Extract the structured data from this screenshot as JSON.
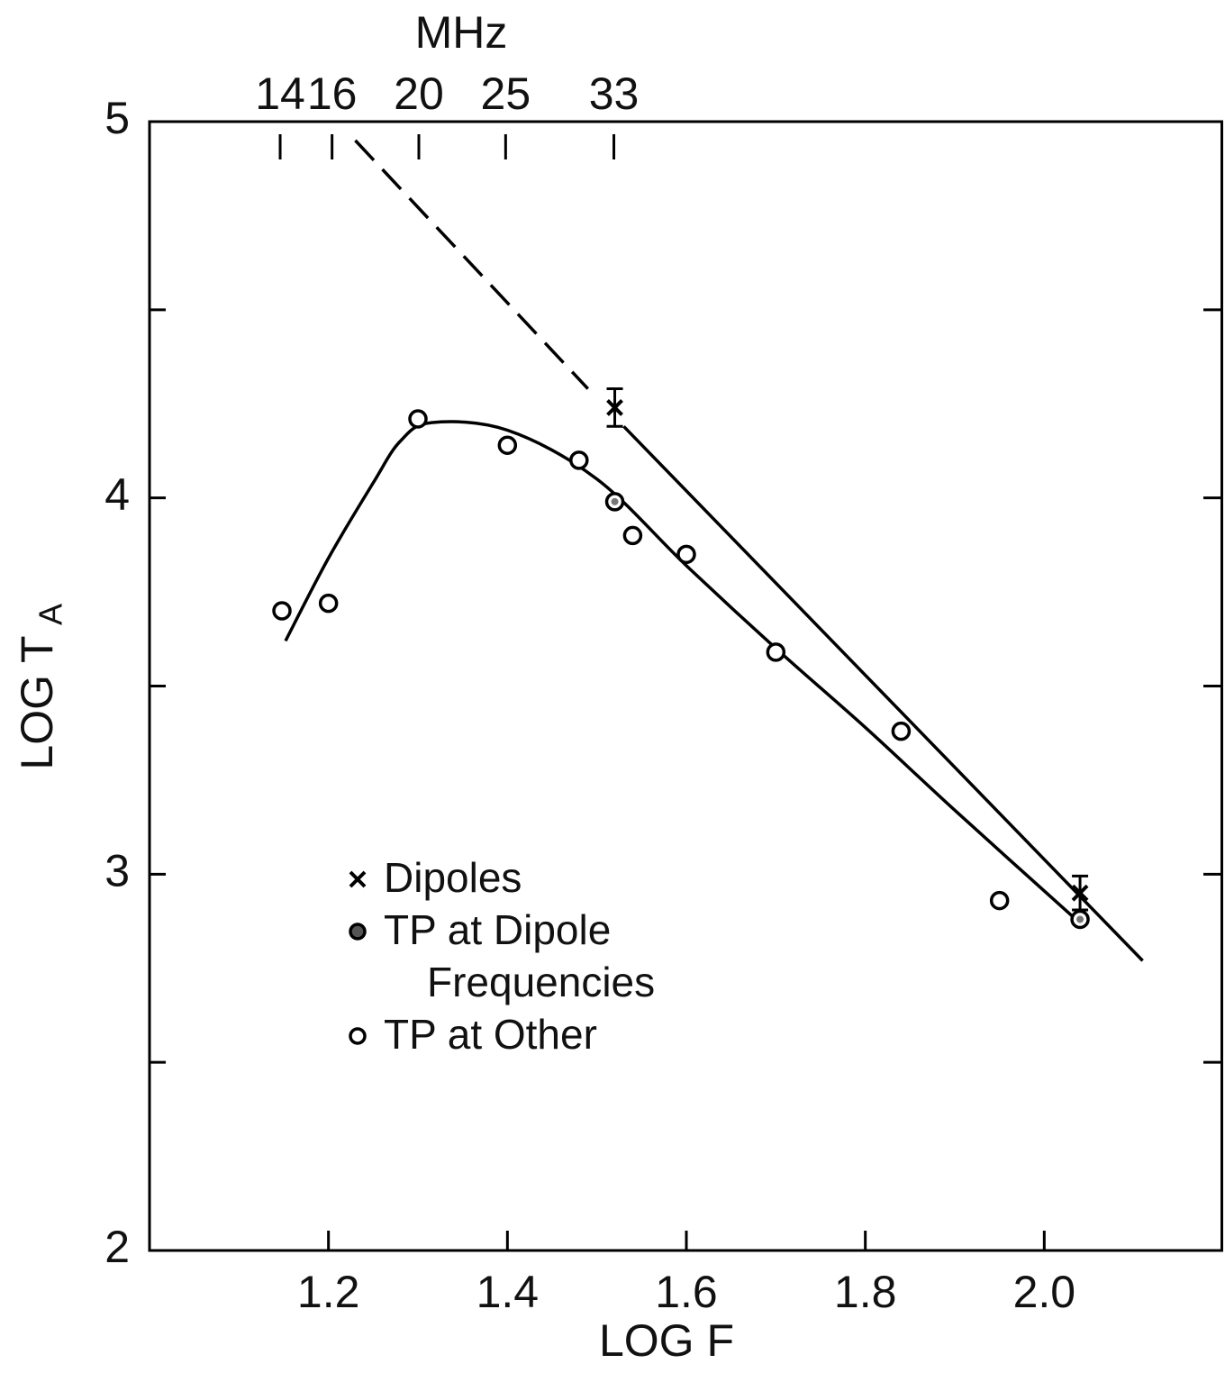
{
  "chart_data": {
    "type": "scatter",
    "xlabel": "LOG F",
    "ylabel": "LOG T",
    "ylabel_sub": "A",
    "x2label": "MHz",
    "xlim": [
      1.0,
      2.2
    ],
    "ylim": [
      2,
      5
    ],
    "xticks": [
      {
        "value": 1.2,
        "label": "1.2"
      },
      {
        "value": 1.4,
        "label": "1.4"
      },
      {
        "value": 1.6,
        "label": "1.6"
      },
      {
        "value": 1.8,
        "label": "1.8"
      },
      {
        "value": 2.0,
        "label": "2.0"
      }
    ],
    "yticks": [
      2,
      3,
      4,
      5
    ],
    "yminor": [
      2.5,
      3.5,
      4.5
    ],
    "x2ticks": [
      {
        "value": 1.146,
        "label": "14"
      },
      {
        "value": 1.204,
        "label": "16"
      },
      {
        "value": 1.301,
        "label": "20"
      },
      {
        "value": 1.398,
        "label": "25"
      },
      {
        "value": 1.519,
        "label": "33"
      }
    ],
    "color": "#000000",
    "series": [
      {
        "name": "Dipoles",
        "marker": "x",
        "x": [
          1.52,
          2.04
        ],
        "values": [
          4.24,
          2.95
        ],
        "errors": [
          0.05,
          0.045
        ]
      },
      {
        "name": "TP at Dipole Frequencies",
        "marker": "dot",
        "x": [
          1.52,
          2.04
        ],
        "values": [
          3.99,
          2.88
        ]
      },
      {
        "name": "TP at Other",
        "marker": "circle",
        "x": [
          1.148,
          1.2,
          1.3,
          1.4,
          1.48,
          1.54,
          1.6,
          1.7,
          1.84,
          1.95
        ],
        "values": [
          3.7,
          3.72,
          4.21,
          4.14,
          4.1,
          3.9,
          3.85,
          3.59,
          3.38,
          2.93
        ]
      }
    ],
    "curves": [
      {
        "x": [
          1.23,
          1.49
        ],
        "y": [
          4.95,
          4.29
        ],
        "dashed": true,
        "smooth": false
      },
      {
        "x": [
          1.53,
          2.11
        ],
        "y": [
          4.19,
          2.77
        ],
        "dashed": false,
        "smooth": false
      },
      {
        "x": [
          1.152,
          1.2,
          1.25,
          1.28,
          1.315,
          1.4,
          1.5,
          1.6,
          1.7,
          1.8,
          1.9,
          2.04
        ],
        "y": [
          3.62,
          3.84,
          4.04,
          4.15,
          4.2,
          4.18,
          4.05,
          3.82,
          3.6,
          3.39,
          3.17,
          2.87
        ],
        "dashed": false,
        "smooth": true
      }
    ],
    "legend": "center-left"
  }
}
